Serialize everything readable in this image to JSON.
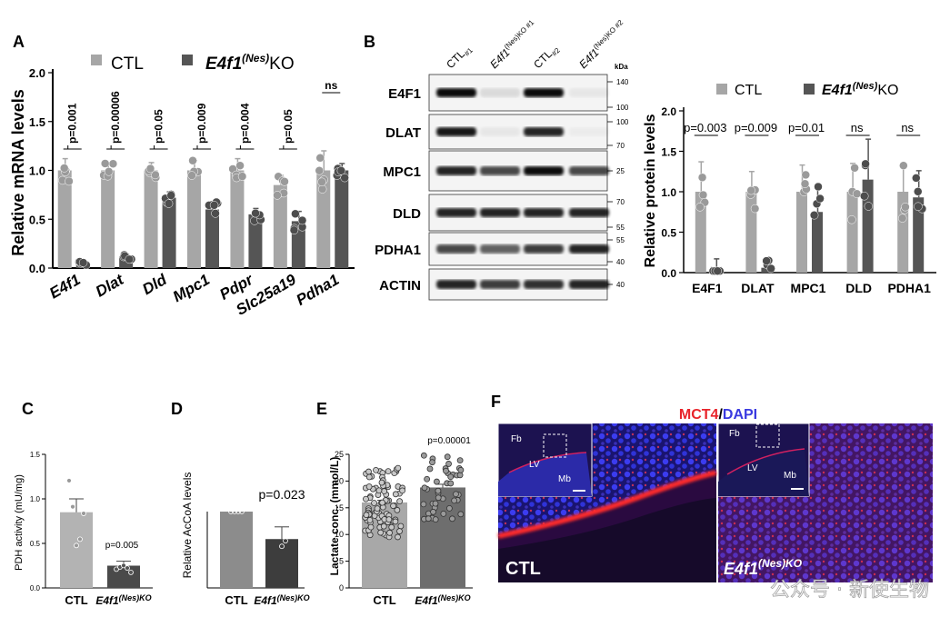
{
  "panels": {
    "A": "A",
    "B": "B",
    "C": "C",
    "D": "D",
    "E": "E",
    "F": "F"
  },
  "legend": {
    "ctl": "CTL",
    "ko_main": "E4f1",
    "ko_sup": "(Nes)",
    "ko_tail": "KO"
  },
  "colors": {
    "ctl": "#a6a6a6",
    "ko": "#555555",
    "ctl_dot": "#9a9a9a",
    "ko_dot": "#4d4d4d",
    "mct4": "#e8242b",
    "dapi": "#3a3ae0"
  },
  "panelA": {
    "chart_data": {
      "type": "bar",
      "ylabel": "Relative mRNA levels",
      "ylim": [
        0,
        2.0
      ],
      "yticks": [
        "0.0",
        "0.5",
        "1.0",
        "1.5",
        "2.0"
      ],
      "categories": [
        "E4f1",
        "Dlat",
        "Dld",
        "Mpc1",
        "Pdpr",
        "Slc25a19",
        "Pdha1"
      ],
      "series": [
        {
          "name": "CTL",
          "values": [
            1.0,
            1.0,
            1.0,
            1.0,
            1.0,
            0.85,
            1.0
          ],
          "err": [
            0.12,
            0.07,
            0.08,
            0.1,
            0.12,
            0.1,
            0.2
          ]
        },
        {
          "name": "KO",
          "values": [
            0.05,
            0.12,
            0.72,
            0.6,
            0.55,
            0.48,
            1.0
          ],
          "err": [
            0.02,
            0.02,
            0.06,
            0.08,
            0.06,
            0.1,
            0.07
          ]
        }
      ],
      "annotations": [
        "p=0.001",
        "p=0.00006",
        "p=0.05",
        "p=0.009",
        "p=0.004",
        "p=0.05",
        "ns"
      ]
    }
  },
  "panelB": {
    "lanes": [
      "CTL#1",
      "E4f1(Nes)KO #1",
      "CTL#2",
      "E4f1(Nes)KO #2"
    ],
    "lane_parts": [
      {
        "main": "CTL",
        "sub": "#1"
      },
      {
        "main": "E4f1",
        "sup": "(Nes)KO #1"
      },
      {
        "main": "CTL",
        "sub": "#2"
      },
      {
        "main": "E4f1",
        "sup": "(Nes)KO #2"
      }
    ],
    "kda": "kDa",
    "blots": [
      {
        "name": "E4F1",
        "markers": [
          "140",
          "100"
        ],
        "intensity": [
          0.95,
          0.1,
          0.95,
          0.05
        ]
      },
      {
        "name": "DLAT",
        "markers": [
          "100",
          "70"
        ],
        "intensity": [
          0.9,
          0.05,
          0.85,
          0.03
        ]
      },
      {
        "name": "MPC1",
        "markers": [
          "25"
        ],
        "intensity": [
          0.85,
          0.7,
          0.95,
          0.7
        ]
      },
      {
        "name": "DLD",
        "markers": [
          "70",
          "55"
        ],
        "intensity": [
          0.85,
          0.85,
          0.85,
          0.85
        ]
      },
      {
        "name": "PDHA1",
        "markers": [
          "55",
          "40"
        ],
        "intensity": [
          0.7,
          0.6,
          0.75,
          0.85
        ]
      },
      {
        "name": "ACTIN",
        "markers": [
          "40"
        ],
        "intensity": [
          0.85,
          0.75,
          0.8,
          0.85
        ]
      }
    ],
    "chart_data": {
      "type": "bar",
      "ylabel": "Relative protein levels",
      "ylim": [
        0,
        2.0
      ],
      "yticks": [
        "0.0",
        "0.5",
        "1.0",
        "1.5",
        "2.0"
      ],
      "categories": [
        "E4F1",
        "DLAT",
        "MPC1",
        "DLD",
        "PDHA1"
      ],
      "series": [
        {
          "name": "CTL",
          "values": [
            1.0,
            1.0,
            1.0,
            1.0,
            1.0
          ],
          "err": [
            0.37,
            0.25,
            0.33,
            0.35,
            0.32
          ]
        },
        {
          "name": "KO",
          "values": [
            0.07,
            0.06,
            0.75,
            1.15,
            0.93
          ],
          "err": [
            0.1,
            0.1,
            0.3,
            0.5,
            0.33
          ]
        }
      ],
      "annotations": [
        "p=0.003",
        "p=0.009",
        "p=0.01",
        "ns",
        "ns"
      ]
    }
  },
  "panelC": {
    "chart_data": {
      "type": "bar",
      "ylabel": "PDH activity (mU/mg)",
      "ylim": [
        0,
        1.5
      ],
      "yticks": [
        "0.0",
        "0.5",
        "1.0",
        "1.5"
      ],
      "categories": [
        "CTL",
        "E4f1(Nes)KO"
      ],
      "values": [
        0.85,
        0.25
      ],
      "err": [
        0.15,
        0.05
      ],
      "annotation": "p=0.005"
    }
  },
  "panelD": {
    "chart_data": {
      "type": "bar",
      "ylabel": "Relative AcCoA levels",
      "ylim": [
        0,
        1.0
      ],
      "categories": [
        "CTL",
        "E4f1(Nes)KO"
      ],
      "values": [
        1.0,
        0.64
      ],
      "err": [
        0.0,
        0.16
      ],
      "annotation": "p=0.023"
    }
  },
  "panelE": {
    "chart_data": {
      "type": "bar",
      "ylabel": "Lactate conc. (mmol/L)",
      "ylim": [
        0,
        25
      ],
      "yticks": [
        "0",
        "5",
        "10",
        "15",
        "20",
        "25"
      ],
      "categories": [
        "CTL",
        "E4f1(Nes)KO"
      ],
      "values": [
        16.0,
        18.8
      ],
      "err": [
        0.4,
        0.6
      ],
      "annotation": "p=0.00001"
    }
  },
  "panelF": {
    "title_red": "MCT4",
    "title_sep": "/",
    "title_blue": "DAPI",
    "left_label": "CTL",
    "right_label_main": "E4f1",
    "right_label_sup": "(Nes)KO",
    "inset_labels": {
      "fb": "Fb",
      "lv": "LV",
      "mb": "Mb"
    }
  },
  "watermark": "公众号 · 新使生物"
}
